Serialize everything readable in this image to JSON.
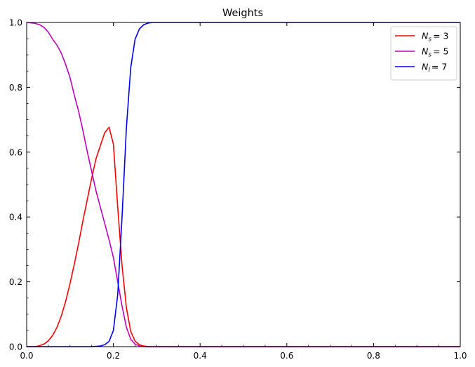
{
  "chart_data": {
    "type": "line",
    "title": "Weights",
    "xlabel": "",
    "ylabel": "",
    "xlim": [
      0,
      1
    ],
    "ylim": [
      0,
      1
    ],
    "xticks": [
      "0.0",
      "0.2",
      "0.4",
      "0.6",
      "0.8",
      "1.0"
    ],
    "yticks": [
      "0.0",
      "0.2",
      "0.4",
      "0.6",
      "0.8",
      "1.0"
    ],
    "grid": false,
    "legend_position": "top-right",
    "series": [
      {
        "name": "N_s = 3",
        "legend_base": "N",
        "legend_sub": "s",
        "legend_value": "= 3",
        "color": "#ff0000",
        "x": [
          0.0,
          0.02,
          0.03,
          0.04,
          0.05,
          0.06,
          0.07,
          0.08,
          0.09,
          0.1,
          0.11,
          0.12,
          0.13,
          0.14,
          0.15,
          0.16,
          0.17,
          0.18,
          0.19,
          0.2,
          0.21,
          0.22,
          0.23,
          0.24,
          0.25,
          0.26,
          0.27,
          0.28,
          0.29,
          0.3,
          0.35,
          1.0
        ],
        "y": [
          0.0,
          0.0,
          0.003,
          0.008,
          0.018,
          0.035,
          0.06,
          0.095,
          0.14,
          0.195,
          0.255,
          0.32,
          0.39,
          0.455,
          0.52,
          0.58,
          0.62,
          0.66,
          0.677,
          0.625,
          0.43,
          0.25,
          0.12,
          0.047,
          0.017,
          0.006,
          0.002,
          0.0,
          0.0,
          0.0,
          0.0,
          0.0
        ]
      },
      {
        "name": "N_s = 5",
        "legend_base": "N",
        "legend_sub": "s",
        "legend_value": "= 5",
        "color": "#bf00bf",
        "x": [
          0.0,
          0.02,
          0.03,
          0.04,
          0.05,
          0.06,
          0.07,
          0.08,
          0.09,
          0.1,
          0.11,
          0.12,
          0.13,
          0.14,
          0.15,
          0.16,
          0.17,
          0.18,
          0.19,
          0.2,
          0.21,
          0.22,
          0.23,
          0.24,
          0.25,
          0.26,
          0.27,
          0.28,
          0.29,
          0.3,
          0.35,
          1.0
        ],
        "y": [
          1.0,
          0.997,
          0.993,
          0.985,
          0.97,
          0.948,
          0.93,
          0.905,
          0.87,
          0.83,
          0.775,
          0.725,
          0.665,
          0.6,
          0.54,
          0.48,
          0.43,
          0.38,
          0.33,
          0.275,
          0.2,
          0.125,
          0.06,
          0.023,
          0.008,
          0.002,
          0.0,
          0.0,
          0.0,
          0.0,
          0.0,
          0.0
        ]
      },
      {
        "name": "N_l = 7",
        "legend_base": "N",
        "legend_sub": "l",
        "legend_value": "= 7",
        "color": "#0000ff",
        "x": [
          0.0,
          0.12,
          0.15,
          0.17,
          0.18,
          0.19,
          0.2,
          0.21,
          0.22,
          0.23,
          0.24,
          0.25,
          0.26,
          0.27,
          0.28,
          0.29,
          0.3,
          0.35,
          0.4,
          1.0
        ],
        "y": [
          0.0,
          0.0,
          0.0,
          0.002,
          0.006,
          0.016,
          0.05,
          0.16,
          0.4,
          0.675,
          0.86,
          0.948,
          0.98,
          0.993,
          0.998,
          1.0,
          1.0,
          1.0,
          1.0,
          1.0
        ]
      }
    ]
  }
}
